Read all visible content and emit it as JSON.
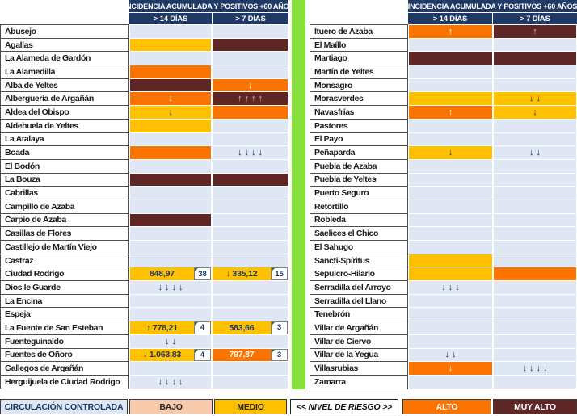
{
  "chart_data": {
    "type": "table",
    "title": "INCIDENCIA ACUMULADA Y POSITIVOS +60 AÑOS",
    "column_headers": [
      "> 14 DÍAS",
      "> 7 DÍAS"
    ],
    "risk_legend": {
      "controlled": "CIRCULACIÓN CONTROLADA",
      "low": "BAJO",
      "medium": "MEDIO",
      "axis_label": "<< NIVEL DE RIESGO >>",
      "high": "ALTO",
      "very_high": "MUY ALTO"
    },
    "left_rows": [
      {
        "name": "Abusejo",
        "d14": [
          "controlled",
          "",
          ""
        ],
        "d7": [
          "controlled",
          "",
          ""
        ]
      },
      {
        "name": "Agallas",
        "d14": [
          "medium",
          "",
          ""
        ],
        "d7": [
          "very_high",
          "",
          ""
        ]
      },
      {
        "name": "La Alameda de Gardón",
        "d14": [
          "controlled",
          "",
          ""
        ],
        "d7": [
          "controlled",
          "",
          ""
        ]
      },
      {
        "name": "La Alamedilla",
        "d14": [
          "high",
          "",
          ""
        ],
        "d7": [
          "controlled",
          "",
          ""
        ]
      },
      {
        "name": "Alba de Yeltes",
        "d14": [
          "very_high",
          "",
          ""
        ],
        "d7": [
          "high",
          "↓",
          ""
        ]
      },
      {
        "name": "Alberguería de Argañán",
        "d14": [
          "high",
          "↓",
          ""
        ],
        "d7": [
          "very_high",
          "↑↑↑↑",
          ""
        ]
      },
      {
        "name": "Aldea del Obispo",
        "d14": [
          "medium",
          "↓",
          ""
        ],
        "d7": [
          "high",
          "",
          ""
        ]
      },
      {
        "name": "Aldehuela de Yeltes",
        "d14": [
          "medium",
          "",
          ""
        ],
        "d7": [
          "controlled",
          "",
          ""
        ]
      },
      {
        "name": "La Atalaya",
        "d14": [
          "controlled",
          "",
          ""
        ],
        "d7": [
          "controlled",
          "",
          ""
        ]
      },
      {
        "name": "Boada",
        "d14": [
          "high",
          "",
          ""
        ],
        "d7": [
          "controlled",
          "↓↓↓↓",
          ""
        ]
      },
      {
        "name": "El Bodón",
        "d14": [
          "controlled",
          "",
          ""
        ],
        "d7": [
          "controlled",
          "",
          ""
        ]
      },
      {
        "name": "La Bouza",
        "d14": [
          "very_high",
          "",
          ""
        ],
        "d7": [
          "very_high",
          "",
          ""
        ]
      },
      {
        "name": "Cabrillas",
        "d14": [
          "controlled",
          "",
          ""
        ],
        "d7": [
          "controlled",
          "",
          ""
        ]
      },
      {
        "name": "Campillo de Azaba",
        "d14": [
          "controlled",
          "",
          ""
        ],
        "d7": [
          "controlled",
          "",
          ""
        ]
      },
      {
        "name": "Carpio de Azaba",
        "d14": [
          "very_high",
          "",
          ""
        ],
        "d7": [
          "controlled",
          "",
          ""
        ]
      },
      {
        "name": "Casillas de Flores",
        "d14": [
          "controlled",
          "",
          ""
        ],
        "d7": [
          "controlled",
          "",
          ""
        ]
      },
      {
        "name": "Castillejo de Martín Viejo",
        "d14": [
          "controlled",
          "",
          ""
        ],
        "d7": [
          "controlled",
          "",
          ""
        ]
      },
      {
        "name": "Castraz",
        "d14": [
          "controlled",
          "",
          ""
        ],
        "d7": [
          "controlled",
          "",
          ""
        ]
      },
      {
        "name": "Ciudad Rodrigo",
        "d14": [
          "medium",
          "848,97",
          "38"
        ],
        "d7": [
          "medium",
          "↓ 335,12",
          "15"
        ]
      },
      {
        "name": "Dios le Guarde",
        "d14": [
          "controlled",
          "↓↓↓↓",
          ""
        ],
        "d7": [
          "controlled",
          "",
          ""
        ]
      },
      {
        "name": "La Encina",
        "d14": [
          "controlled",
          "",
          ""
        ],
        "d7": [
          "controlled",
          "",
          ""
        ]
      },
      {
        "name": "Espeja",
        "d14": [
          "controlled",
          "",
          ""
        ],
        "d7": [
          "controlled",
          "",
          ""
        ]
      },
      {
        "name": "La Fuente de San Esteban",
        "d14": [
          "medium",
          "↑ 778,21",
          "4"
        ],
        "d7": [
          "medium",
          "583,66",
          "3"
        ]
      },
      {
        "name": "Fuenteguinaldo",
        "d14": [
          "controlled",
          "↓↓",
          ""
        ],
        "d7": [
          "controlled",
          "",
          ""
        ]
      },
      {
        "name": "Fuentes de Oñoro",
        "d14": [
          "medium",
          "↓ 1.063,83",
          "4"
        ],
        "d7": [
          "high",
          "797,87",
          "3"
        ]
      },
      {
        "name": "Gallegos de Argañán",
        "d14": [
          "controlled",
          "",
          ""
        ],
        "d7": [
          "controlled",
          "",
          ""
        ]
      },
      {
        "name": "Herguijuela de Ciudad Rodrigo",
        "d14": [
          "controlled",
          "↓↓↓↓",
          ""
        ],
        "d7": [
          "controlled",
          "",
          ""
        ]
      }
    ],
    "right_rows": [
      {
        "name": "Ituero de Azaba",
        "d14": [
          "high",
          "↑",
          ""
        ],
        "d7": [
          "very_high",
          "↑",
          ""
        ]
      },
      {
        "name": "El Maíllo",
        "d14": [
          "controlled",
          "",
          ""
        ],
        "d7": [
          "controlled",
          "",
          ""
        ]
      },
      {
        "name": "Martiago",
        "d14": [
          "very_high",
          "",
          ""
        ],
        "d7": [
          "very_high",
          "",
          ""
        ]
      },
      {
        "name": "Martín de Yeltes",
        "d14": [
          "controlled",
          "",
          ""
        ],
        "d7": [
          "controlled",
          "",
          ""
        ]
      },
      {
        "name": "Monsagro",
        "d14": [
          "controlled",
          "",
          ""
        ],
        "d7": [
          "controlled",
          "",
          ""
        ]
      },
      {
        "name": "Morasverdes",
        "d14": [
          "medium",
          "",
          ""
        ],
        "d7": [
          "medium",
          "↓↓",
          ""
        ]
      },
      {
        "name": "Navasfrías",
        "d14": [
          "high",
          "↑",
          ""
        ],
        "d7": [
          "medium",
          "↓",
          ""
        ]
      },
      {
        "name": "Pastores",
        "d14": [
          "controlled",
          "",
          ""
        ],
        "d7": [
          "controlled",
          "",
          ""
        ]
      },
      {
        "name": "El Payo",
        "d14": [
          "controlled",
          "",
          ""
        ],
        "d7": [
          "controlled",
          "",
          ""
        ]
      },
      {
        "name": "Peñaparda",
        "d14": [
          "medium",
          "↓",
          ""
        ],
        "d7": [
          "controlled",
          "↓↓",
          ""
        ]
      },
      {
        "name": "Puebla de Azaba",
        "d14": [
          "controlled",
          "",
          ""
        ],
        "d7": [
          "controlled",
          "",
          ""
        ]
      },
      {
        "name": "Puebla de Yeltes",
        "d14": [
          "controlled",
          "",
          ""
        ],
        "d7": [
          "controlled",
          "",
          ""
        ]
      },
      {
        "name": "Puerto Seguro",
        "d14": [
          "controlled",
          "",
          ""
        ],
        "d7": [
          "controlled",
          "",
          ""
        ]
      },
      {
        "name": "Retortillo",
        "d14": [
          "controlled",
          "",
          ""
        ],
        "d7": [
          "controlled",
          "",
          ""
        ]
      },
      {
        "name": "Robleda",
        "d14": [
          "controlled",
          "",
          ""
        ],
        "d7": [
          "controlled",
          "",
          ""
        ]
      },
      {
        "name": "Saelices el Chico",
        "d14": [
          "controlled",
          "",
          ""
        ],
        "d7": [
          "controlled",
          "",
          ""
        ]
      },
      {
        "name": "El Sahugo",
        "d14": [
          "controlled",
          "",
          ""
        ],
        "d7": [
          "controlled",
          "",
          ""
        ]
      },
      {
        "name": "Sancti-Spíritus",
        "d14": [
          "medium",
          "",
          ""
        ],
        "d7": [
          "controlled",
          "",
          ""
        ]
      },
      {
        "name": "Sepulcro-Hilario",
        "d14": [
          "medium",
          "",
          ""
        ],
        "d7": [
          "high",
          "",
          ""
        ]
      },
      {
        "name": "Serradilla del Arroyo",
        "d14": [
          "controlled",
          "↓↓↓",
          ""
        ],
        "d7": [
          "controlled",
          "",
          ""
        ]
      },
      {
        "name": "Serradilla del Llano",
        "d14": [
          "controlled",
          "",
          ""
        ],
        "d7": [
          "controlled",
          "",
          ""
        ]
      },
      {
        "name": "Tenebrón",
        "d14": [
          "controlled",
          "",
          ""
        ],
        "d7": [
          "controlled",
          "",
          ""
        ]
      },
      {
        "name": "Villar de Argañán",
        "d14": [
          "controlled",
          "",
          ""
        ],
        "d7": [
          "controlled",
          "",
          ""
        ]
      },
      {
        "name": "Villar de Ciervo",
        "d14": [
          "controlled",
          "",
          ""
        ],
        "d7": [
          "controlled",
          "",
          ""
        ]
      },
      {
        "name": "Villar de la Yegua",
        "d14": [
          "controlled",
          "↓↓",
          ""
        ],
        "d7": [
          "controlled",
          "",
          ""
        ]
      },
      {
        "name": "Villasrubias",
        "d14": [
          "high",
          "↓",
          ""
        ],
        "d7": [
          "controlled",
          "↓↓↓↓",
          ""
        ]
      },
      {
        "name": "Zamarra",
        "d14": [
          "controlled",
          "",
          ""
        ],
        "d7": [
          "controlled",
          "",
          ""
        ]
      }
    ]
  },
  "colors": {
    "header_navy": "#1F3864",
    "controlled": "#DEE7F3",
    "low": "#F8CBAD",
    "medium": "#FFC000",
    "high": "#FB7300",
    "very_high": "#5F2626",
    "divider_green": "#87E13C",
    "text_dark": "#1F3864",
    "text_light": "#FFFFFF",
    "text_on_maroon": "#F0B9A8"
  }
}
